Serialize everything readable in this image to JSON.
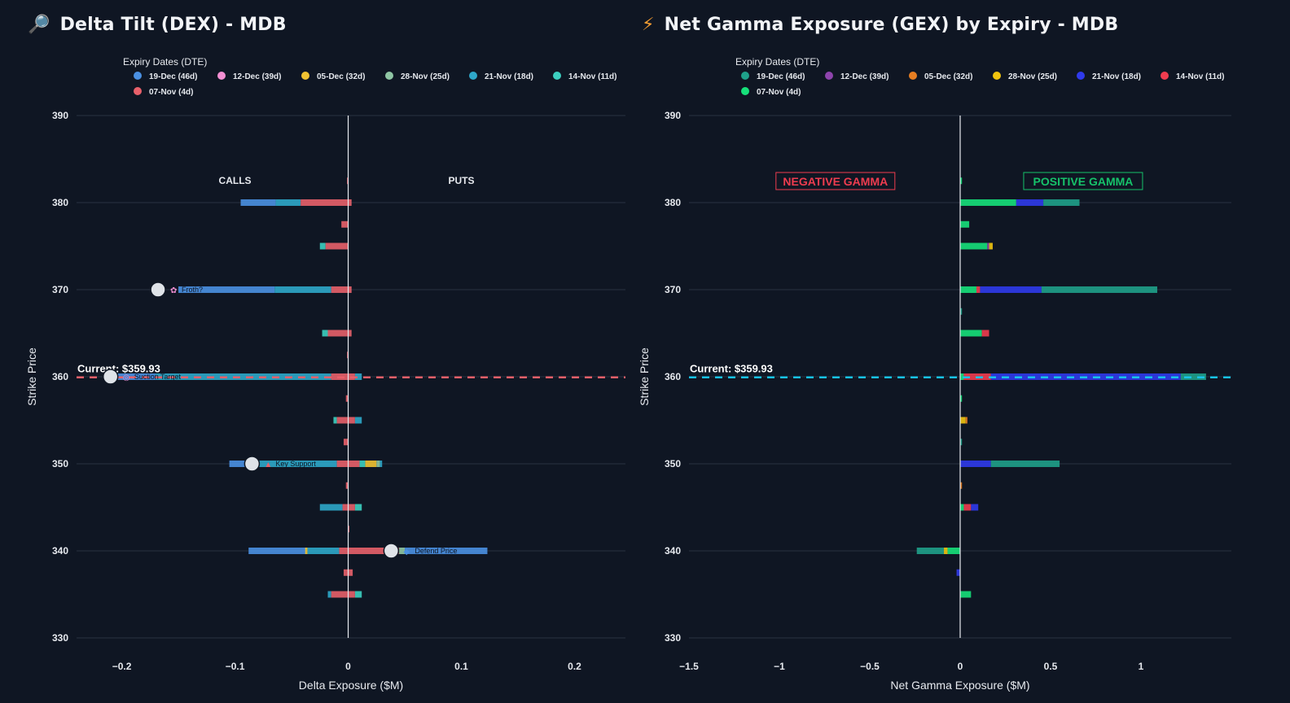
{
  "left": {
    "title": "Delta Tilt (DEX) - MDB",
    "title_icon": "magnifier-icon",
    "legend_title": "Expiry Dates (DTE)",
    "legend": [
      {
        "label": "19-Dec (46d)",
        "color": "#4a90e2"
      },
      {
        "label": "12-Dec (39d)",
        "color": "#f48fd3"
      },
      {
        "label": "05-Dec (32d)",
        "color": "#f1c232"
      },
      {
        "label": "28-Nov (25d)",
        "color": "#8fc6a4"
      },
      {
        "label": "21-Nov (18d)",
        "color": "#2ea7c9"
      },
      {
        "label": "14-Nov (11d)",
        "color": "#3ccfc0"
      },
      {
        "label": "07-Nov (4d)",
        "color": "#e8606a"
      }
    ]
  },
  "right": {
    "title": "Net Gamma Exposure (GEX) by Expiry - MDB",
    "title_icon": "lightning-icon",
    "legend_title": "Expiry Dates (DTE)",
    "legend": [
      {
        "label": "19-Dec (46d)",
        "color": "#1fa08a"
      },
      {
        "label": "12-Dec (39d)",
        "color": "#8e44ad"
      },
      {
        "label": "05-Dec (32d)",
        "color": "#e67e22"
      },
      {
        "label": "28-Nov (25d)",
        "color": "#f1c40f"
      },
      {
        "label": "21-Nov (18d)",
        "color": "#2f3aeb"
      },
      {
        "label": "14-Nov (11d)",
        "color": "#ef3c4f"
      },
      {
        "label": "07-Nov (4d)",
        "color": "#16e07a"
      }
    ]
  },
  "chart_data": [
    {
      "type": "bar",
      "orientation": "horizontal",
      "stacked": true,
      "title": "Delta Tilt (DEX) - MDB",
      "xlabel": "Delta Exposure ($M)",
      "ylabel": "Strike Price",
      "xlim": [
        -0.24,
        0.245
      ],
      "ylim": [
        328,
        391
      ],
      "xticks": [
        -0.2,
        -0.1,
        0,
        0.1,
        0.2
      ],
      "xtick_labels": [
        "−0.2",
        "−0.1",
        "0",
        "0.1",
        "0.2"
      ],
      "yticks": [
        330,
        340,
        350,
        360,
        370,
        380,
        390
      ],
      "current_price": 359.93,
      "current_label": "Current: $359.93",
      "current_line_color": "#e8606a",
      "side_labels": [
        "CALLS",
        "PUTS"
      ],
      "series": [
        {
          "name": "19-Dec (46d)",
          "color": "#4a90e2",
          "segments": [
            {
              "strike": 380,
              "from": -0.064,
              "to": -0.095
            },
            {
              "strike": 370,
              "from": -0.065,
              "to": -0.15
            },
            {
              "strike": 360,
              "from": -0.17,
              "to": -0.21
            },
            {
              "strike": 350,
              "from": -0.08,
              "to": -0.105
            },
            {
              "strike": 340,
              "from": -0.037,
              "to": -0.088
            },
            {
              "strike": 340,
              "from": 0.05,
              "to": 0.123
            }
          ]
        },
        {
          "name": "12-Dec (39d)",
          "color": "#f48fd3",
          "segments": []
        },
        {
          "name": "05-Dec (32d)",
          "color": "#f1c232",
          "segments": [
            {
              "strike": 350,
              "from": 0.015,
              "to": 0.025
            },
            {
              "strike": 340,
              "from": -0.036,
              "to": -0.038
            }
          ]
        },
        {
          "name": "28-Nov (25d)",
          "color": "#8fc6a4",
          "segments": [
            {
              "strike": 350,
              "from": 0.025,
              "to": 0.028
            },
            {
              "strike": 340,
              "from": 0.045,
              "to": 0.05
            }
          ]
        },
        {
          "name": "21-Nov (18d)",
          "color": "#2ea7c9",
          "segments": [
            {
              "strike": 380,
              "from": -0.042,
              "to": -0.064
            },
            {
              "strike": 370,
              "from": -0.015,
              "to": -0.065
            },
            {
              "strike": 360,
              "from": -0.015,
              "to": -0.17
            },
            {
              "strike": 360,
              "from": 0.006,
              "to": 0.012
            },
            {
              "strike": 355,
              "from": 0.006,
              "to": 0.012
            },
            {
              "strike": 350,
              "from": -0.01,
              "to": -0.08
            },
            {
              "strike": 350,
              "from": 0.028,
              "to": 0.03
            },
            {
              "strike": 345,
              "from": -0.005,
              "to": -0.025
            },
            {
              "strike": 340,
              "from": -0.008,
              "to": -0.036
            },
            {
              "strike": 335,
              "from": -0.015,
              "to": -0.018
            }
          ]
        },
        {
          "name": "14-Nov (11d)",
          "color": "#3ccfc0",
          "segments": [
            {
              "strike": 375,
              "from": -0.02,
              "to": -0.025
            },
            {
              "strike": 365,
              "from": -0.018,
              "to": -0.023
            },
            {
              "strike": 355,
              "from": -0.01,
              "to": -0.013
            },
            {
              "strike": 345,
              "from": 0.006,
              "to": 0.012
            },
            {
              "strike": 335,
              "from": 0.006,
              "to": 0.012
            },
            {
              "strike": 350,
              "from": 0.01,
              "to": 0.015
            }
          ]
        },
        {
          "name": "07-Nov (4d)",
          "color": "#e8606a",
          "segments": [
            {
              "strike": 380,
              "from": 0,
              "to": -0.042
            },
            {
              "strike": 380,
              "from": 0,
              "to": 0.003
            },
            {
              "strike": 377.5,
              "from": 0,
              "to": -0.006
            },
            {
              "strike": 375,
              "from": 0,
              "to": -0.02
            },
            {
              "strike": 370,
              "from": 0,
              "to": -0.015
            },
            {
              "strike": 370,
              "from": 0,
              "to": 0.003
            },
            {
              "strike": 365,
              "from": 0,
              "to": -0.018
            },
            {
              "strike": 365,
              "from": 0,
              "to": 0.003
            },
            {
              "strike": 360,
              "from": 0,
              "to": -0.015
            },
            {
              "strike": 360,
              "from": 0,
              "to": 0.006
            },
            {
              "strike": 357.5,
              "from": 0,
              "to": -0.002
            },
            {
              "strike": 355,
              "from": 0,
              "to": -0.01
            },
            {
              "strike": 355,
              "from": 0,
              "to": 0.006
            },
            {
              "strike": 352.5,
              "from": 0,
              "to": -0.004
            },
            {
              "strike": 350,
              "from": 0,
              "to": -0.01
            },
            {
              "strike": 350,
              "from": 0,
              "to": 0.01
            },
            {
              "strike": 347.5,
              "from": 0,
              "to": -0.002
            },
            {
              "strike": 345,
              "from": 0,
              "to": -0.005
            },
            {
              "strike": 345,
              "from": 0,
              "to": 0.006
            },
            {
              "strike": 342.5,
              "from": 0,
              "to": 0.001
            },
            {
              "strike": 340,
              "from": 0,
              "to": -0.008
            },
            {
              "strike": 340,
              "from": 0,
              "to": 0.045
            },
            {
              "strike": 337.5,
              "from": 0,
              "to": -0.004
            },
            {
              "strike": 337.5,
              "from": 0,
              "to": 0.004
            },
            {
              "strike": 335,
              "from": 0,
              "to": -0.015
            },
            {
              "strike": 335,
              "from": 0,
              "to": 0.006
            },
            {
              "strike": 382.5,
              "from": 0,
              "to": -0.001
            },
            {
              "strike": 362.5,
              "from": 0,
              "to": -0.001
            }
          ]
        }
      ],
      "callouts": [
        {
          "strike": 370,
          "value": -0.168,
          "icon": "sparkle-icon",
          "text": "Froth?"
        },
        {
          "strike": 360,
          "value": -0.21,
          "icon": "target-icon",
          "text": "Suction Target"
        },
        {
          "strike": 350,
          "value": -0.085,
          "icon": "pin-icon",
          "text": "Key Support"
        },
        {
          "strike": 340,
          "value": 0.038,
          "icon": "shield-icon",
          "text": "Defend Price"
        }
      ]
    },
    {
      "type": "bar",
      "orientation": "horizontal",
      "stacked": true,
      "title": "Net Gamma Exposure (GEX) by Expiry - MDB",
      "xlabel": "Net Gamma Exposure ($M)",
      "ylabel": "Strike Price",
      "xlim": [
        -1.5,
        1.5
      ],
      "ylim": [
        328,
        391
      ],
      "xticks": [
        -1.5,
        -1,
        -0.5,
        0,
        0.5,
        1
      ],
      "xtick_labels": [
        "−1.5",
        "−1",
        "−0.5",
        "0",
        "0.5",
        "1"
      ],
      "yticks": [
        330,
        340,
        350,
        360,
        370,
        380,
        390
      ],
      "current_price": 359.93,
      "current_label": "Current: $359.93",
      "current_line_color": "#18c3e8",
      "region_labels": [
        {
          "text": "NEGATIVE GAMMA",
          "color": "#ef3c4f"
        },
        {
          "text": "POSITIVE GAMMA",
          "color": "#16c26a"
        }
      ],
      "series": [
        {
          "name": "07-Nov (4d)",
          "color": "#16e07a",
          "segments": [
            {
              "strike": 380,
              "from": 0,
              "to": 0.31
            },
            {
              "strike": 377.5,
              "from": 0,
              "to": 0.05
            },
            {
              "strike": 375,
              "from": 0,
              "to": 0.15
            },
            {
              "strike": 370,
              "from": 0,
              "to": 0.09
            },
            {
              "strike": 365,
              "from": 0,
              "to": 0.12
            },
            {
              "strike": 360,
              "from": 0,
              "to": 0.02
            },
            {
              "strike": 345,
              "from": 0,
              "to": 0.02
            },
            {
              "strike": 340,
              "from": 0,
              "to": -0.07
            },
            {
              "strike": 335,
              "from": 0,
              "to": 0.06
            },
            {
              "strike": 382.5,
              "from": 0,
              "to": 0.01
            },
            {
              "strike": 357.5,
              "from": 0,
              "to": 0.01
            }
          ]
        },
        {
          "name": "14-Nov (11d)",
          "color": "#ef3c4f",
          "segments": [
            {
              "strike": 370,
              "from": 0.09,
              "to": 0.11
            },
            {
              "strike": 365,
              "from": 0.12,
              "to": 0.16
            },
            {
              "strike": 360,
              "from": 0.02,
              "to": 0.17
            },
            {
              "strike": 345,
              "from": 0.02,
              "to": 0.06
            }
          ]
        },
        {
          "name": "21-Nov (18d)",
          "color": "#2f3aeb",
          "segments": [
            {
              "strike": 380,
              "from": 0.31,
              "to": 0.46
            },
            {
              "strike": 370,
              "from": 0.11,
              "to": 0.45
            },
            {
              "strike": 360,
              "from": 0.17,
              "to": 1.22
            },
            {
              "strike": 350,
              "from": 0,
              "to": 0.17
            },
            {
              "strike": 345,
              "from": 0.06,
              "to": 0.1
            },
            {
              "strike": 337.5,
              "from": 0,
              "to": -0.02
            }
          ]
        },
        {
          "name": "28-Nov (25d)",
          "color": "#f1c40f",
          "segments": [
            {
              "strike": 375,
              "from": 0.16,
              "to": 0.18
            },
            {
              "strike": 355,
              "from": 0,
              "to": 0.03
            },
            {
              "strike": 340,
              "from": -0.07,
              "to": -0.09
            }
          ]
        },
        {
          "name": "05-Dec (32d)",
          "color": "#e67e22",
          "segments": [
            {
              "strike": 355,
              "from": 0.03,
              "to": 0.04
            },
            {
              "strike": 347.5,
              "from": 0,
              "to": 0.01
            }
          ]
        },
        {
          "name": "12-Dec (39d)",
          "color": "#8e44ad",
          "segments": [
            {
              "strike": 375,
              "from": 0.15,
              "to": 0.16
            }
          ]
        },
        {
          "name": "19-Dec (46d)",
          "color": "#1fa08a",
          "segments": [
            {
              "strike": 380,
              "from": 0.46,
              "to": 0.66
            },
            {
              "strike": 370,
              "from": 0.45,
              "to": 1.09
            },
            {
              "strike": 360,
              "from": 1.22,
              "to": 1.36
            },
            {
              "strike": 350,
              "from": 0.17,
              "to": 0.55
            },
            {
              "strike": 340,
              "from": -0.09,
              "to": -0.24
            },
            {
              "strike": 352.5,
              "from": 0,
              "to": 0.01
            },
            {
              "strike": 367.5,
              "from": 0,
              "to": 0.01
            }
          ]
        }
      ]
    }
  ]
}
